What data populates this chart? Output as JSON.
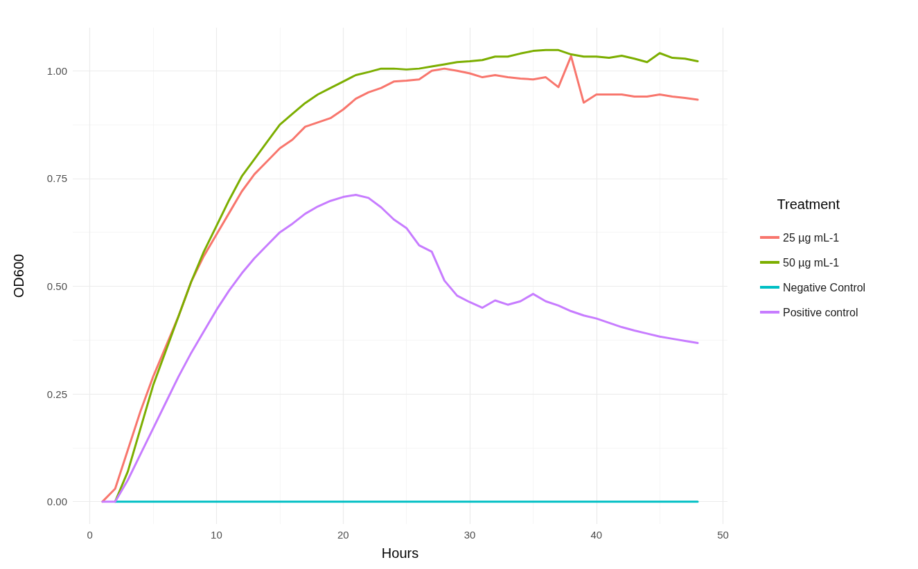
{
  "chart_data": {
    "type": "line",
    "xlabel": "Hours",
    "ylabel": "OD600",
    "legend_title": "Treatment",
    "legend": "right",
    "grid": true,
    "line_style": "solid",
    "marker": "none",
    "xlim": [
      -1.35,
      50.35
    ],
    "xticks": [
      0,
      10,
      20,
      30,
      40,
      50
    ],
    "ylim": [
      -0.052,
      1.1
    ],
    "yticks": [
      {
        "value": 0,
        "label": "0.00"
      },
      {
        "value": 0.25,
        "label": "0.25"
      },
      {
        "value": 0.5,
        "label": "0.50"
      },
      {
        "value": 0.75,
        "label": "0.75"
      },
      {
        "value": 1,
        "label": "1.00"
      }
    ],
    "series": [
      {
        "name": "25 µg mL-1",
        "color": "#f8766d",
        "x": [
          1,
          2,
          3,
          4,
          5,
          6,
          7,
          8,
          9,
          10,
          11,
          12,
          13,
          14,
          15,
          16,
          17,
          18,
          19,
          20,
          21,
          22,
          23,
          24,
          25,
          26,
          27,
          28,
          29,
          30,
          31,
          32,
          33,
          34,
          35,
          36,
          37,
          38,
          39,
          40,
          41,
          42,
          43,
          44,
          45,
          46,
          47,
          48
        ],
        "values": [
          0,
          0.03,
          0.12,
          0.21,
          0.29,
          0.36,
          0.43,
          0.51,
          0.57,
          0.62,
          0.67,
          0.72,
          0.76,
          0.79,
          0.82,
          0.84,
          0.87,
          0.88,
          0.89,
          0.91,
          0.935,
          0.95,
          0.96,
          0.975,
          0.977,
          0.98,
          1.0,
          1.005,
          1.0,
          0.994,
          0.985,
          0.99,
          0.985,
          0.982,
          0.98,
          0.985,
          0.962,
          1.034,
          0.926,
          0.945,
          0.945,
          0.945,
          0.94,
          0.94,
          0.945,
          0.94,
          0.937,
          0.933
        ]
      },
      {
        "name": "50 µg mL-1",
        "color": "#7cae00",
        "x": [
          2,
          3,
          4,
          5,
          6,
          7,
          8,
          9,
          10,
          11,
          12,
          13,
          14,
          15,
          16,
          17,
          18,
          19,
          20,
          21,
          22,
          23,
          24,
          25,
          26,
          27,
          28,
          29,
          30,
          31,
          32,
          33,
          34,
          35,
          36,
          37,
          38,
          39,
          40,
          41,
          42,
          43,
          44,
          45,
          46,
          47,
          48
        ],
        "values": [
          0,
          0.07,
          0.17,
          0.27,
          0.35,
          0.43,
          0.51,
          0.58,
          0.64,
          0.7,
          0.755,
          0.795,
          0.835,
          0.875,
          0.9,
          0.925,
          0.945,
          0.96,
          0.975,
          0.99,
          0.997,
          1.005,
          1.005,
          1.003,
          1.005,
          1.01,
          1.015,
          1.02,
          1.022,
          1.025,
          1.033,
          1.033,
          1.04,
          1.046,
          1.048,
          1.048,
          1.038,
          1.033,
          1.033,
          1.03,
          1.035,
          1.028,
          1.02,
          1.041,
          1.03,
          1.028,
          1.022
        ]
      },
      {
        "name": "Negative Control",
        "color": "#00bfc4",
        "x": [
          2,
          48
        ],
        "values": [
          0,
          0
        ]
      },
      {
        "name": "Positive control",
        "color": "#c77cff",
        "x": [
          1,
          2,
          3,
          4,
          5,
          6,
          7,
          8,
          9,
          10,
          11,
          12,
          13,
          14,
          15,
          16,
          17,
          18,
          19,
          20,
          21,
          22,
          23,
          24,
          25,
          26,
          27,
          28,
          29,
          30,
          31,
          32,
          33,
          34,
          35,
          36,
          37,
          38,
          39,
          40,
          41,
          42,
          43,
          44,
          45,
          46,
          47,
          48
        ],
        "values": [
          0,
          0,
          0.05,
          0.11,
          0.17,
          0.23,
          0.29,
          0.345,
          0.395,
          0.445,
          0.49,
          0.53,
          0.565,
          0.595,
          0.625,
          0.645,
          0.668,
          0.685,
          0.698,
          0.707,
          0.712,
          0.705,
          0.683,
          0.655,
          0.635,
          0.595,
          0.58,
          0.513,
          0.478,
          0.463,
          0.45,
          0.467,
          0.457,
          0.465,
          0.482,
          0.465,
          0.455,
          0.442,
          0.432,
          0.425,
          0.415,
          0.405,
          0.397,
          0.39,
          0.383,
          0.378,
          0.373,
          0.368
        ]
      }
    ]
  }
}
